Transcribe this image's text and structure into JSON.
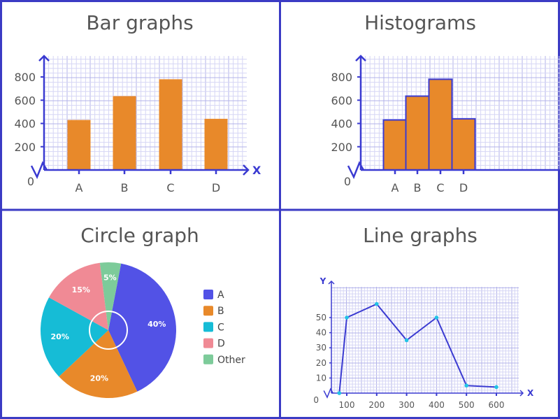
{
  "colors": {
    "border": "#3b3bc4",
    "axis": "#3a3ad1",
    "grid_minor": "#d6d6f5",
    "grid_major": "#b3b3ea",
    "bar": "#e8892a",
    "text": "#555555"
  },
  "chart_data": [
    {
      "type": "bar",
      "title": "Bar graphs",
      "categories": [
        "A",
        "B",
        "C",
        "D"
      ],
      "values": [
        430,
        635,
        780,
        440
      ],
      "yticks": [
        "200",
        "400",
        "600",
        "800"
      ],
      "origin_label": "0",
      "xlabel": "X",
      "ylim": [
        0,
        1000
      ],
      "grid": true
    },
    {
      "type": "bar",
      "title": "Histograms",
      "categories": [
        "A",
        "B",
        "C",
        "D"
      ],
      "values": [
        430,
        635,
        780,
        440
      ],
      "yticks": [
        "200",
        "400",
        "600",
        "800"
      ],
      "origin_label": "0",
      "xlabel": "X",
      "ylim": [
        0,
        1000
      ],
      "grid": true
    },
    {
      "type": "pie",
      "title": "Circle graph",
      "slices": [
        {
          "name": "A",
          "value": 40,
          "label": "40%",
          "color": "#5252e6"
        },
        {
          "name": "B",
          "value": 20,
          "label": "20%",
          "color": "#e8892a"
        },
        {
          "name": "C",
          "value": 20,
          "label": "20%",
          "color": "#16bcd6"
        },
        {
          "name": "D",
          "value": 15,
          "label": "15%",
          "color": "#f08a95"
        },
        {
          "name": "Other",
          "value": 5,
          "label": "5%",
          "color": "#7dcb9a"
        }
      ],
      "legend": "right"
    },
    {
      "type": "line",
      "title": "Line graphs",
      "x": [
        75,
        100,
        200,
        300,
        400,
        500,
        600
      ],
      "y": [
        0,
        50,
        59,
        35,
        50,
        5,
        4
      ],
      "xticks": [
        "100",
        "200",
        "300",
        "400",
        "500",
        "600"
      ],
      "yticks": [
        "10",
        "20",
        "30",
        "40",
        "50"
      ],
      "origin_label": "0",
      "xlabel": "X",
      "ylabel": "Y",
      "xlim": [
        50,
        650
      ],
      "ylim": [
        0,
        65
      ],
      "grid": true,
      "line_color": "#3a3ad1",
      "marker_color": "#22c3e6"
    }
  ]
}
